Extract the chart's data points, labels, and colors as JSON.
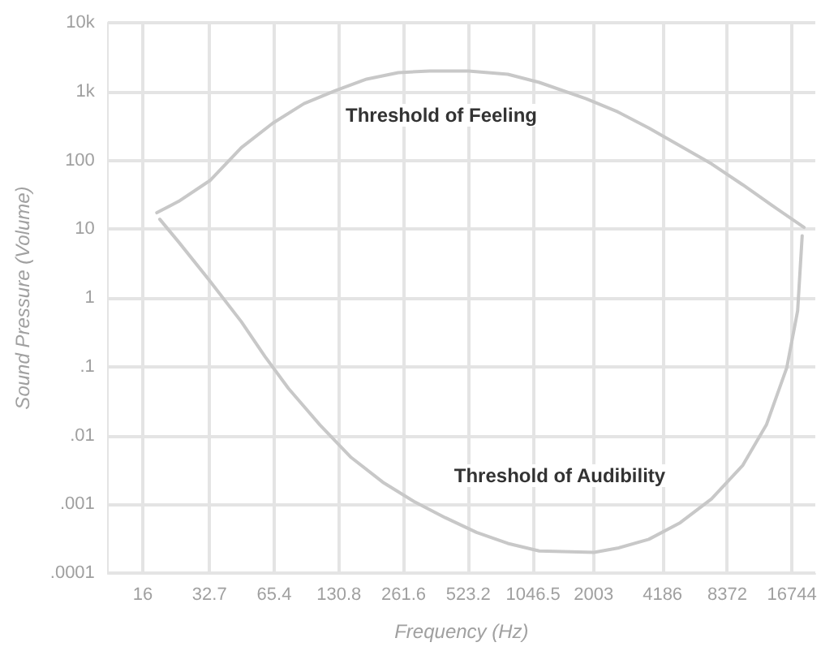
{
  "chart_data": {
    "type": "line",
    "xlabel": "Frequency (Hz)",
    "ylabel": "Sound Pressure (Volume)",
    "series": [
      {
        "color": "#c8c8c8",
        "x": [
          18.6,
          23.5,
          32.9,
          46,
          64.4,
          90,
          126,
          176,
          247,
          345,
          525,
          799,
          1118,
          1848,
          2587,
          3617,
          5060,
          7075,
          9900,
          13850,
          19060
        ],
        "values": [
          17.3,
          25.3,
          51,
          153,
          347,
          668,
          1033,
          1514,
          1884,
          1991,
          1991,
          1783,
          1358,
          787,
          508,
          294,
          162,
          89,
          44,
          21,
          10.6
        ]
      },
      {
        "color": "#c8c8c8",
        "x": [
          19.2,
          23.5,
          32.9,
          46,
          59.3,
          76.3,
          106.6,
          149,
          209,
          292,
          408,
          571,
          799,
          1118,
          2010,
          2587,
          3617,
          5060,
          7075,
          9900,
          12740,
          15850,
          17800,
          18690
        ],
        "values": [
          13.9,
          6.5,
          1.75,
          0.45,
          0.14,
          0.048,
          0.0143,
          0.0048,
          0.0021,
          0.0011,
          0.00064,
          0.00039,
          0.00027,
          0.00021,
          0.0002,
          0.00023,
          0.00031,
          0.00054,
          0.0012,
          0.0037,
          0.0143,
          0.097,
          0.65,
          8
        ]
      }
    ],
    "annotations": [
      "Threshold of Feeling",
      "Threshold of Audibility"
    ],
    "log": "xy",
    "grid": true,
    "marker": "none",
    "line_style": "solid",
    "xlim": [
      11,
      21500
    ],
    "xticks": [
      16,
      32.7,
      65.4,
      130.8,
      261.6,
      523.2,
      1046.5,
      2003,
      4186,
      8372,
      16744
    ],
    "ylim": [
      0.0001,
      10000
    ],
    "yticks": [
      {
        "value": 0.0001,
        "label": ".0001"
      },
      {
        "value": 0.001,
        "label": ".001"
      },
      {
        "value": 0.01,
        "label": ".01"
      },
      {
        "value": 0.1,
        "label": ".1"
      },
      {
        "value": 1,
        "label": "1"
      },
      {
        "value": 10,
        "label": "10"
      },
      {
        "value": 100,
        "label": "100"
      },
      {
        "value": 1000,
        "label": "1k"
      },
      {
        "value": 10000,
        "label": "10k"
      }
    ]
  }
}
